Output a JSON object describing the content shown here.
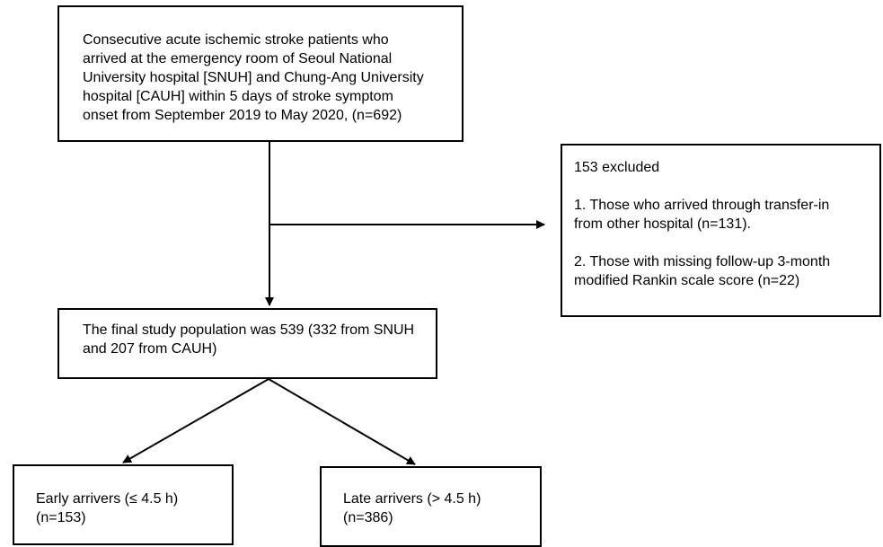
{
  "source_box": {
    "lines": [
      "Consecutive acute ischemic stroke patients who",
      "arrived at the emergency room of Seoul National",
      "University hospital [SNUH] and Chung-Ang University",
      "hospital [CAUH] within 5 days of stroke symptom",
      "onset from September 2019 to May 2020, (n=692)"
    ]
  },
  "excluded_box": {
    "title": "153 excluded",
    "reason1_lines": [
      "1. Those who arrived through transfer-in",
      "from other hospital (n=131)."
    ],
    "reason2_lines": [
      "2. Those with missing follow-up 3-month",
      "modified Rankin scale score (n=22)"
    ]
  },
  "final_box": {
    "lines": [
      "The final study population was 539 (332 from SNUH",
      "and 207 from CAUH)"
    ]
  },
  "early_box": {
    "lines": [
      "Early arrivers (≤ 4.5 h)",
      "(n=153)"
    ]
  },
  "late_box": {
    "lines": [
      "Late arrivers (> 4.5 h)",
      "(n=386)"
    ]
  },
  "colors": {
    "stroke": "#000000",
    "text": "#000000",
    "background": "#ffffff"
  }
}
